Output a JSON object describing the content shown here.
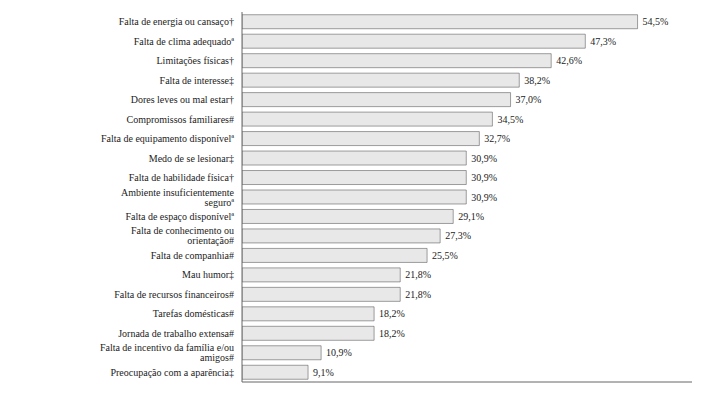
{
  "chart_data": {
    "type": "bar",
    "orientation": "horizontal",
    "categories": [
      "Preocupação com a aparência‡",
      "Falta de incentivo da família e/ou amigos#",
      "Jornada de trabalho extensa#",
      "Tarefas domésticas#",
      "Falta de recursos financeiros#",
      "Mau humor‡",
      "Falta de companhia#",
      "Falta de conhecimento ou orientação#",
      "Falta de espaço disponívelª",
      "Ambiente insuficientemente seguroª",
      "Falta de habilidade física†",
      "Medo de se lesionar‡",
      "Falta de equipamento disponívelª",
      "Compromissos familiares#",
      "Dores leves ou mal estar†",
      "Falta de interesse‡",
      "Limitações físicas†",
      "Falta de clima adequadoª",
      "Falta de energia ou cansaço†"
    ],
    "values": [
      9.1,
      10.9,
      18.2,
      18.2,
      21.8,
      21.8,
      25.5,
      27.3,
      29.1,
      30.9,
      30.9,
      30.9,
      32.7,
      34.5,
      37.0,
      38.2,
      42.6,
      47.3,
      54.5
    ],
    "value_labels": [
      "9,1%",
      "10,9%",
      "18,2%",
      "18,2%",
      "21,8%",
      "21,8%",
      "25,5%",
      "27,3%",
      "29,1%",
      "30,9%",
      "30,9%",
      "30,9%",
      "32,7%",
      "34,5%",
      "37,0%",
      "38,2%",
      "42,6%",
      "47,3%",
      "54,5%"
    ],
    "data_labels": true,
    "color": "#e8e8e8",
    "xlim": [
      0,
      62
    ],
    "grid": false,
    "tick_labels": "y"
  }
}
